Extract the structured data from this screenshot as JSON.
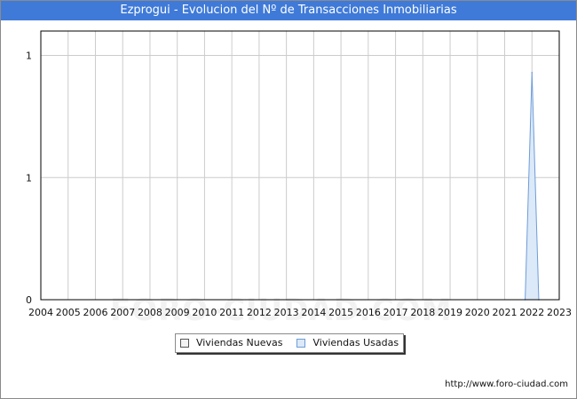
{
  "header": {
    "title": "Ezprogui - Evolucion del Nº de Transacciones Inmobiliarias"
  },
  "footer": {
    "url": "http://www.foro-ciudad.com"
  },
  "watermark": {
    "text": "FORO-CIUDAD.COM"
  },
  "colors": {
    "title_bar": "#3f7ad8",
    "nuevas_fill": "#f3f3f3",
    "usadas_fill": "#dce9f8",
    "usadas_line": "#6e9cd8",
    "grid": "#cccccc"
  },
  "chart_data": {
    "type": "area",
    "title": "Ezprogui - Evolucion del Nº de Transacciones Inmobiliarias",
    "xlabel": "",
    "ylabel": "",
    "x_ticks": [
      "2004",
      "2005",
      "2006",
      "2007",
      "2008",
      "2009",
      "2010",
      "2011",
      "2012",
      "2013",
      "2014",
      "2015",
      "2016",
      "2017",
      "2018",
      "2019",
      "2020",
      "2021",
      "2022",
      "2023"
    ],
    "xlim": [
      2004,
      2023
    ],
    "y_ticks": [
      {
        "value": 0,
        "label": "0"
      },
      {
        "value": 0.5,
        "label": "1"
      },
      {
        "value": 1,
        "label": "1"
      }
    ],
    "ylim": [
      0,
      1.1
    ],
    "grid": true,
    "legend_position": "bottom-center",
    "series": [
      {
        "name": "Viviendas Nuevas",
        "points": []
      },
      {
        "name": "Viviendas Usadas",
        "points": [
          [
            2021.75,
            0
          ],
          [
            2022.0,
            0.93
          ],
          [
            2022.25,
            0
          ]
        ]
      }
    ]
  }
}
